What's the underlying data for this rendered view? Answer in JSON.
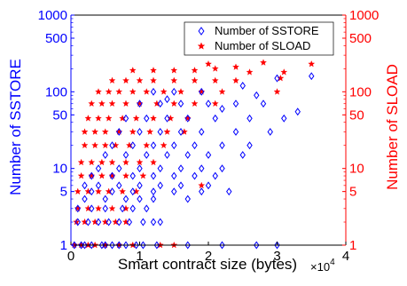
{
  "chart_data": {
    "type": "scatter",
    "xlabel": "Smart contract size (bytes)",
    "x_multiplier_label": "×10",
    "x_multiplier_exp": "4",
    "ylabel_left": "Number of SSTORE",
    "ylabel_right": "Number of SLOAD",
    "xlim": [
      0,
      40000
    ],
    "ylim_left": [
      1,
      1000
    ],
    "ylim_right": [
      1,
      1000
    ],
    "yscale": "log",
    "x_ticks": [
      {
        "value": 0,
        "label": "0"
      },
      {
        "value": 10000,
        "label": "1"
      },
      {
        "value": 20000,
        "label": "2"
      },
      {
        "value": 30000,
        "label": "3"
      },
      {
        "value": 40000,
        "label": "4"
      }
    ],
    "y_ticks_left": [
      {
        "value": 1,
        "label": "1"
      },
      {
        "value": 5,
        "label": "5"
      },
      {
        "value": 10,
        "label": "10"
      },
      {
        "value": 50,
        "label": "50"
      },
      {
        "value": 100,
        "label": "100"
      },
      {
        "value": 500,
        "label": "500"
      },
      {
        "value": 1000,
        "label": "1000"
      }
    ],
    "y_ticks_right": [
      {
        "value": 1,
        "label": "1"
      },
      {
        "value": 5,
        "label": "5"
      },
      {
        "value": 10,
        "label": "10"
      },
      {
        "value": 50,
        "label": "50"
      },
      {
        "value": 100,
        "label": "100"
      },
      {
        "value": 500,
        "label": "500"
      },
      {
        "value": 1000,
        "label": "1000"
      }
    ],
    "legend_position": "top-right",
    "series": [
      {
        "name": "Number of SSTORE",
        "axis": "left",
        "marker": "diamond",
        "color": "#0000ff",
        "points": [
          [
            1500,
            1
          ],
          [
            3000,
            1
          ],
          [
            4500,
            1
          ],
          [
            6000,
            1
          ],
          [
            8000,
            1
          ],
          [
            10500,
            1
          ],
          [
            12500,
            1
          ],
          [
            17000,
            1
          ],
          [
            22000,
            1
          ],
          [
            27000,
            1
          ],
          [
            30000,
            1
          ],
          [
            500,
            1
          ],
          [
            2000,
            1
          ],
          [
            5000,
            1
          ],
          [
            7000,
            1
          ],
          [
            9500,
            1
          ],
          [
            1000,
            2
          ],
          [
            2500,
            2
          ],
          [
            4000,
            2
          ],
          [
            5500,
            2
          ],
          [
            7000,
            2
          ],
          [
            8500,
            2
          ],
          [
            10500,
            2
          ],
          [
            12000,
            2
          ],
          [
            13000,
            2
          ],
          [
            1000,
            3
          ],
          [
            3000,
            3
          ],
          [
            5000,
            3
          ],
          [
            7500,
            3
          ],
          [
            9000,
            3
          ],
          [
            11000,
            3
          ],
          [
            2000,
            4
          ],
          [
            5000,
            4
          ],
          [
            8000,
            4
          ],
          [
            10000,
            4
          ],
          [
            12000,
            4
          ],
          [
            17000,
            4
          ],
          [
            3000,
            5
          ],
          [
            6000,
            5
          ],
          [
            9000,
            5
          ],
          [
            12000,
            5
          ],
          [
            15000,
            5
          ],
          [
            19000,
            5
          ],
          [
            23000,
            5
          ],
          [
            2000,
            6
          ],
          [
            4000,
            6
          ],
          [
            7000,
            6
          ],
          [
            10000,
            6
          ],
          [
            13000,
            6
          ],
          [
            16000,
            6
          ],
          [
            20000,
            6
          ],
          [
            3000,
            8
          ],
          [
            6000,
            8
          ],
          [
            9000,
            8
          ],
          [
            12000,
            8
          ],
          [
            15000,
            8
          ],
          [
            18000,
            8
          ],
          [
            21000,
            8
          ],
          [
            4000,
            10
          ],
          [
            7000,
            10
          ],
          [
            10000,
            10
          ],
          [
            13000,
            10
          ],
          [
            16000,
            10
          ],
          [
            19000,
            10
          ],
          [
            22000,
            10
          ],
          [
            5000,
            15
          ],
          [
            8000,
            15
          ],
          [
            11000,
            15
          ],
          [
            14000,
            15
          ],
          [
            17000,
            15
          ],
          [
            20000,
            15
          ],
          [
            25000,
            15
          ],
          [
            6000,
            20
          ],
          [
            9000,
            20
          ],
          [
            12000,
            20
          ],
          [
            15000,
            20
          ],
          [
            18000,
            20
          ],
          [
            22000,
            20
          ],
          [
            26000,
            20
          ],
          [
            7000,
            30
          ],
          [
            10000,
            30
          ],
          [
            13000,
            30
          ],
          [
            16000,
            30
          ],
          [
            19000,
            30
          ],
          [
            24000,
            30
          ],
          [
            29000,
            30
          ],
          [
            8000,
            45
          ],
          [
            11000,
            45
          ],
          [
            14000,
            45
          ],
          [
            17000,
            45
          ],
          [
            21000,
            45
          ],
          [
            26000,
            45
          ],
          [
            31000,
            45
          ],
          [
            10000,
            70
          ],
          [
            13000,
            70
          ],
          [
            16000,
            70
          ],
          [
            20000,
            70
          ],
          [
            24000,
            70
          ],
          [
            28000,
            70
          ],
          [
            12000,
            100
          ],
          [
            15000,
            100
          ],
          [
            19000,
            100
          ],
          [
            25000,
            120
          ],
          [
            30000,
            150
          ],
          [
            35000,
            160
          ],
          [
            14000,
            80
          ],
          [
            22000,
            60
          ],
          [
            27000,
            90
          ],
          [
            33000,
            55
          ]
        ]
      },
      {
        "name": "Number of SLOAD",
        "axis": "right",
        "marker": "star",
        "color": "#ff0000",
        "points": [
          [
            500,
            1
          ],
          [
            1500,
            1
          ],
          [
            2500,
            1
          ],
          [
            3500,
            1
          ],
          [
            5000,
            1
          ],
          [
            7000,
            1
          ],
          [
            9000,
            1
          ],
          [
            13000,
            1
          ],
          [
            15000,
            1
          ],
          [
            800,
            2
          ],
          [
            2000,
            2
          ],
          [
            3500,
            2
          ],
          [
            5000,
            2
          ],
          [
            6500,
            2
          ],
          [
            8000,
            2
          ],
          [
            1000,
            3
          ],
          [
            2500,
            3
          ],
          [
            4000,
            3
          ],
          [
            6000,
            3
          ],
          [
            8000,
            3
          ],
          [
            1000,
            5
          ],
          [
            2500,
            5
          ],
          [
            4000,
            5
          ],
          [
            5500,
            5
          ],
          [
            7500,
            5
          ],
          [
            9500,
            5
          ],
          [
            19000,
            6
          ],
          [
            1500,
            8
          ],
          [
            3000,
            8
          ],
          [
            4500,
            8
          ],
          [
            6000,
            8
          ],
          [
            8000,
            8
          ],
          [
            10500,
            8
          ],
          [
            1500,
            12
          ],
          [
            3000,
            12
          ],
          [
            4500,
            12
          ],
          [
            6000,
            12
          ],
          [
            8000,
            12
          ],
          [
            10000,
            12
          ],
          [
            12000,
            12
          ],
          [
            2000,
            20
          ],
          [
            3500,
            20
          ],
          [
            5000,
            20
          ],
          [
            6500,
            20
          ],
          [
            8500,
            20
          ],
          [
            11000,
            20
          ],
          [
            13500,
            20
          ],
          [
            2000,
            30
          ],
          [
            3500,
            30
          ],
          [
            5000,
            30
          ],
          [
            7000,
            30
          ],
          [
            9000,
            30
          ],
          [
            11500,
            30
          ],
          [
            14000,
            30
          ],
          [
            16500,
            30
          ],
          [
            2500,
            45
          ],
          [
            4000,
            45
          ],
          [
            5500,
            45
          ],
          [
            7500,
            45
          ],
          [
            9500,
            45
          ],
          [
            12000,
            45
          ],
          [
            14500,
            45
          ],
          [
            17000,
            45
          ],
          [
            3000,
            70
          ],
          [
            4500,
            70
          ],
          [
            6000,
            70
          ],
          [
            8000,
            70
          ],
          [
            10000,
            70
          ],
          [
            12500,
            70
          ],
          [
            15000,
            70
          ],
          [
            18000,
            70
          ],
          [
            21000,
            70
          ],
          [
            4000,
            100
          ],
          [
            5500,
            100
          ],
          [
            7000,
            100
          ],
          [
            9000,
            100
          ],
          [
            11000,
            100
          ],
          [
            13500,
            100
          ],
          [
            16000,
            100
          ],
          [
            19000,
            100
          ],
          [
            22000,
            100
          ],
          [
            6000,
            140
          ],
          [
            8000,
            140
          ],
          [
            10000,
            140
          ],
          [
            12000,
            140
          ],
          [
            15000,
            140
          ],
          [
            18000,
            140
          ],
          [
            21000,
            140
          ],
          [
            24000,
            140
          ],
          [
            9000,
            190
          ],
          [
            12000,
            190
          ],
          [
            15000,
            190
          ],
          [
            18000,
            190
          ],
          [
            21000,
            200
          ],
          [
            24000,
            210
          ],
          [
            28000,
            240
          ],
          [
            30000,
            100
          ],
          [
            30500,
            150
          ],
          [
            35000,
            230
          ],
          [
            26000,
            180
          ],
          [
            31000,
            180
          ],
          [
            20000,
            230
          ]
        ]
      }
    ]
  }
}
